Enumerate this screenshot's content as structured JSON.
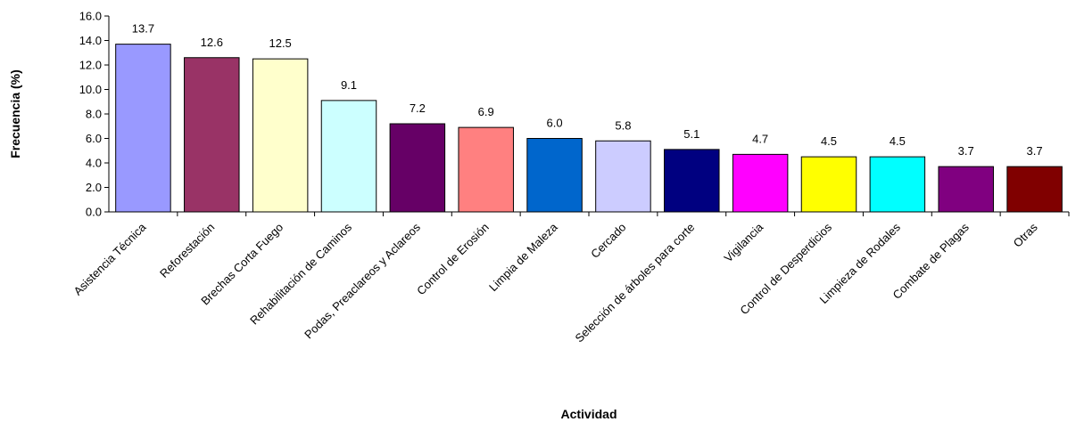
{
  "chart_data": {
    "type": "bar",
    "title": "",
    "xlabel": "Actividad",
    "ylabel": "Frecuencia (%)",
    "ylim": [
      0,
      16
    ],
    "ytick_step": 2,
    "categories": [
      "Asistencia Técnica",
      "Reforestación",
      "Brechas Corta Fuego",
      "Rehabilitación de Caminos",
      "Podas, Preaclareos y Aclareos",
      "Control de Erosión",
      "Limpia de Maleza",
      "Cercado",
      "Selección de árboles para corte",
      "Vigilancia",
      "Control de Desperdicios",
      "Limpieza de Rodales",
      "Combate de Plagas",
      "Otras"
    ],
    "values": [
      13.7,
      12.6,
      12.5,
      9.1,
      7.2,
      6.9,
      6.0,
      5.8,
      5.1,
      4.7,
      4.5,
      4.5,
      3.7,
      3.7
    ],
    "colors": [
      "#9999ff",
      "#993366",
      "#ffffcc",
      "#ccffff",
      "#660066",
      "#ff8080",
      "#0066cc",
      "#ccccff",
      "#000080",
      "#ff00ff",
      "#ffff00",
      "#00ffff",
      "#800080",
      "#800000"
    ],
    "grid": false,
    "legend": "none"
  }
}
